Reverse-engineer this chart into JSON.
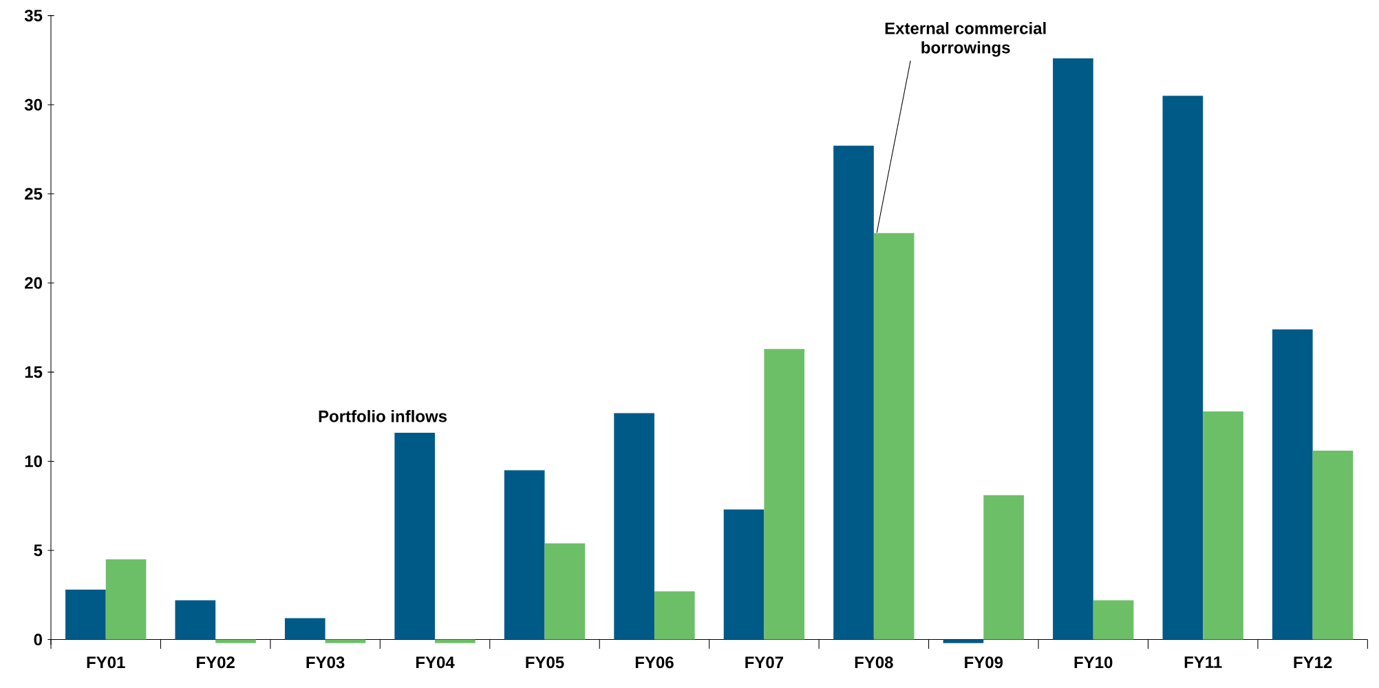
{
  "chart_data": {
    "type": "bar",
    "categories": [
      "FY01",
      "FY02",
      "FY03",
      "FY04",
      "FY05",
      "FY06",
      "FY07",
      "FY08",
      "FY09",
      "FY10",
      "FY11",
      "FY12"
    ],
    "series": [
      {
        "color": "#005a87",
        "values": [
          2.8,
          2.2,
          1.2,
          11.6,
          9.5,
          12.7,
          7.3,
          27.7,
          -0.2,
          32.6,
          30.5,
          17.4
        ]
      },
      {
        "color": "#6dbf67",
        "values": [
          4.5,
          -0.2,
          -0.2,
          -0.2,
          5.4,
          2.7,
          16.3,
          22.8,
          8.1,
          2.2,
          12.8,
          10.6
        ]
      }
    ],
    "ylim": [
      -0.3,
      35
    ],
    "yticks": [
      0,
      5,
      10,
      15,
      20,
      25,
      30,
      35
    ],
    "grid": false,
    "annotations": [
      {
        "text": "Portfolio inflows",
        "x": "FY04",
        "y": 11.6
      },
      {
        "text": "External commercial borrowings",
        "x": "FY08",
        "y": 22.8
      }
    ]
  }
}
